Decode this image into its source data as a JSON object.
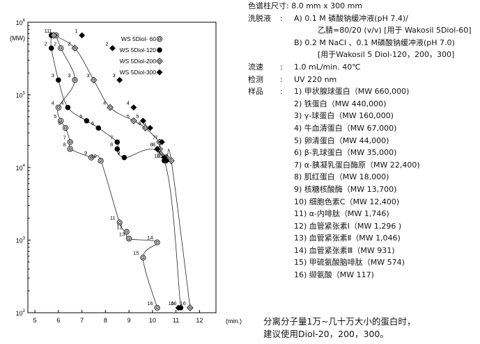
{
  "chart_data": {
    "type": "scatter",
    "xlabel": "(min.)",
    "ylabel": "(MW)",
    "x_ticks": [
      "5",
      "6",
      "7",
      "8",
      "9",
      "10",
      "11",
      "12"
    ],
    "xlim": [
      4.7,
      12.7
    ],
    "ylim": [
      100,
      1000000
    ],
    "y_scale": "log",
    "y_ticks": [
      {
        "base": "10",
        "exp": "6"
      },
      {
        "base": "10",
        "exp": "5"
      },
      {
        "base": "10",
        "exp": "4"
      },
      {
        "base": "10",
        "exp": "3"
      },
      {
        "base": "10",
        "exp": "2"
      }
    ],
    "legend_position": "top-right",
    "series": [
      {
        "name": "WS 5Diol- 60",
        "marker": "double-circle",
        "curve": true,
        "points": [
          [
            5.9,
            660000,
            "1"
          ],
          [
            6.1,
            440000,
            "2"
          ],
          [
            6.7,
            160000,
            "3"
          ],
          [
            6.0,
            67000,
            "4"
          ],
          [
            6.1,
            44000,
            "5"
          ],
          [
            6.3,
            35000,
            "6"
          ],
          [
            6.5,
            22400,
            "7"
          ],
          [
            6.5,
            18000,
            "8"
          ],
          [
            7.4,
            13700,
            "9"
          ],
          [
            7.8,
            12400,
            "10"
          ],
          [
            8.6,
            1746,
            "11"
          ],
          [
            8.9,
            1296,
            "12"
          ],
          [
            9.0,
            1046,
            "13"
          ],
          [
            10.2,
            931,
            "14"
          ],
          [
            9.6,
            574,
            "15"
          ],
          [
            10.2,
            117,
            "16"
          ]
        ]
      },
      {
        "name": "WS 5Diol-120",
        "marker": "filled-circle",
        "curve": true,
        "points": [
          [
            5.7,
            660000,
            "1"
          ],
          [
            5.7,
            440000,
            "2"
          ],
          [
            6.0,
            160000,
            "3"
          ],
          [
            6.4,
            67000,
            "4"
          ],
          [
            7.2,
            44000,
            "5"
          ],
          [
            7.7,
            35000,
            "6"
          ],
          [
            8.5,
            22400,
            "7"
          ],
          [
            8.5,
            18000,
            "8"
          ],
          [
            8.8,
            13700,
            "9"
          ],
          [
            10.5,
            12400,
            "10"
          ],
          [
            11.2,
            117,
            "16"
          ]
        ]
      },
      {
        "name": "WS 5Diol-200",
        "marker": "open-diamond",
        "curve": true,
        "points": [
          [
            5.8,
            660000,
            "1"
          ],
          [
            6.7,
            440000,
            "2"
          ],
          [
            7.5,
            160000,
            "3"
          ],
          [
            8.2,
            67000,
            "4"
          ],
          [
            9.2,
            44000,
            "5"
          ],
          [
            9.7,
            35000,
            "6"
          ],
          [
            10.3,
            22400,
            "7"
          ],
          [
            10.3,
            18000,
            "8"
          ],
          [
            10.6,
            13700,
            "9"
          ],
          [
            10.8,
            12400,
            "10"
          ],
          [
            11.6,
            117,
            "16"
          ]
        ]
      },
      {
        "name": "WS 5Diol-300",
        "marker": "filled-diamond",
        "curve": false,
        "points": [
          [
            7.0,
            660000,
            "1"
          ],
          [
            8.3,
            440000,
            "2"
          ],
          [
            8.6,
            160000,
            "3"
          ],
          [
            9.2,
            67000,
            "4"
          ],
          [
            9.6,
            44000,
            "5"
          ],
          [
            9.9,
            35000,
            "6"
          ],
          [
            10.4,
            22400,
            "7"
          ],
          [
            10.2,
            18000,
            "8"
          ],
          [
            10.5,
            13700,
            "9"
          ],
          [
            10.6,
            12400,
            "10"
          ],
          [
            11.1,
            117,
            "16"
          ]
        ]
      }
    ]
  },
  "conditions": {
    "column_label": "色谱柱尺寸:",
    "column_value": "8.0 mm x 300 mm",
    "eluent_label": "洗脱液",
    "eluent_a1": "A)  0.1 M 磷酸钠缓冲液(pH 7.4)/",
    "eluent_a2": "乙腈=80/20  (v/v)  [用于 Wakosil 5Diol-60]",
    "eluent_b1": "B)  0.2 M NaCl 、0.1 M磷酸钠缓冲液(pH 7.0)",
    "eluent_b2": "[用于Wakosil 5 Diol-120，200，300]",
    "flow_label": "流速",
    "flow_value": "1.0 mL/min.  40℃",
    "detect_label": "检测",
    "detect_value": "UV 220 nm",
    "sample_label": "样品",
    "samples": [
      "1)  甲状腺球蛋白（MW 660,000)",
      "2)  铁蛋白（MW 440,000)",
      "3)  γ-球蛋白（MW 160,000)",
      "4)  牛血清蛋白（MW 67,000)",
      "5)  卵清蛋白（MW 44,000)",
      "6)  β-乳球蛋白（MW 35,000)",
      "7)  α-胰凝乳蛋白酶原（MW 22,400)",
      "8)  肌红蛋白（MW 18,000)",
      "9)  核糖核酸酶（MW 13,700)",
      "10)  细胞色素C（MW 12,400)",
      "11) α-内啡肽（MW 1,746)",
      "12) 血管紧张素Ⅰ（MW 1,296 )",
      "13) 血管紧张素Ⅱ（MW 1,046)",
      "14) 血管紧张素Ⅲ（MW 931)",
      "15) 甲硫氨酸脑啡肽（MW 574)",
      "16) 缬氨酸（MW 117)"
    ]
  },
  "note": {
    "line1": "分离分子量1万~几十万大小的蛋白时，",
    "line2": "建议使用Diol-20，200，300。"
  }
}
